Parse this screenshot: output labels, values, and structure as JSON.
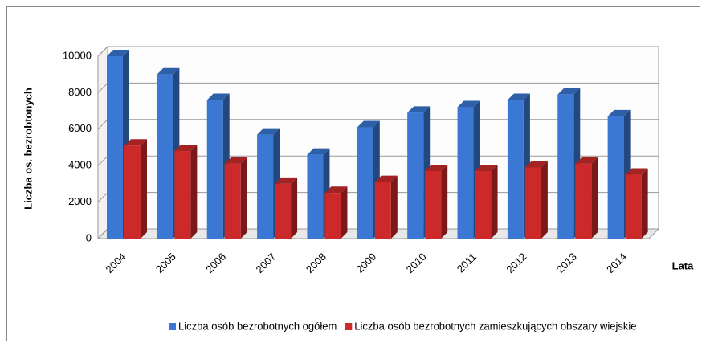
{
  "chart_data": {
    "type": "bar3d",
    "categories": [
      "2004",
      "2005",
      "2006",
      "2007",
      "2008",
      "2009",
      "2010",
      "2011",
      "2012",
      "2013",
      "2014"
    ],
    "series": [
      {
        "name": "Liczba osób bezrobotnych ogółem",
        "color": "#3a78d4",
        "values": [
          10000,
          9000,
          7600,
          5700,
          4600,
          6100,
          6900,
          7200,
          7600,
          7900,
          6700
        ]
      },
      {
        "name": "Liczba osób bezrobotnych zamieszkujących obszary wiejskie",
        "color": "#cc2a2a",
        "values": [
          5100,
          4800,
          4100,
          3000,
          2500,
          3100,
          3700,
          3700,
          3900,
          4100,
          3500
        ]
      }
    ],
    "ylim": [
      0,
      10000
    ],
    "yticks": [
      0,
      2000,
      4000,
      6000,
      8000,
      10000
    ],
    "ylabel": "Liczba os. bezrobtonych",
    "xlabel": "Lata",
    "grid": true,
    "legend": "bottom"
  }
}
